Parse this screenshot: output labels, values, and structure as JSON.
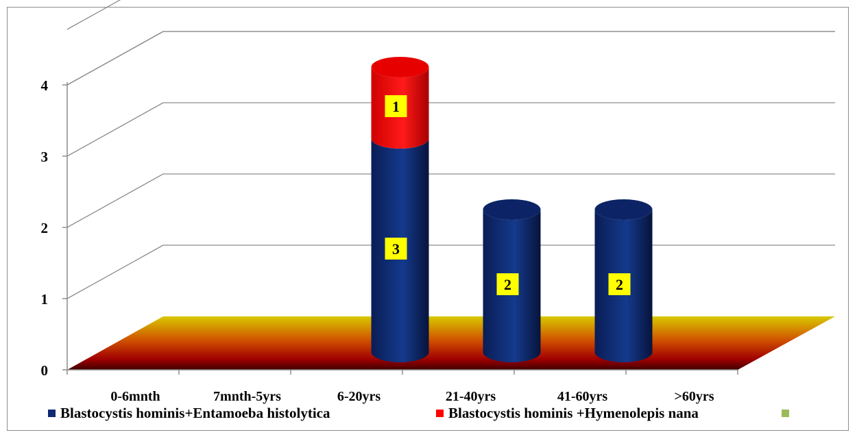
{
  "chart_data": {
    "type": "bar",
    "style": "3d-cylinder-stacked",
    "title": "",
    "xlabel": "",
    "ylabel": "",
    "ylim": [
      0,
      4
    ],
    "yticks": [
      "0",
      "1",
      "2",
      "3",
      "4"
    ],
    "grid": true,
    "legend_position": "bottom",
    "categories": [
      "0-6mnth",
      "7mnth-5yrs",
      "6-20yrs",
      "21-40yrs",
      "41-60yrs",
      ">60yrs"
    ],
    "series": [
      {
        "name": "Blastocystis hominis+Entamoeba histolytica",
        "color": "#0f2a73",
        "values": [
          0,
          0,
          3,
          2,
          2,
          0
        ],
        "labels": [
          "",
          "",
          "3",
          "2",
          "2",
          ""
        ]
      },
      {
        "name": "Blastocystis hominis +Hymenolepis nana",
        "color": "#ff0000",
        "values": [
          0,
          0,
          1,
          0,
          0,
          0
        ],
        "labels": [
          "",
          "",
          "1",
          "",
          "",
          ""
        ]
      },
      {
        "name": "",
        "color": "#9bbb59",
        "values": [
          0,
          0,
          0,
          0,
          0,
          0
        ],
        "labels": [
          "",
          "",
          "",
          "",
          "",
          ""
        ]
      }
    ],
    "data_label_background": "#ffff00",
    "floor_colors": [
      "#d4c400",
      "#c00000",
      "#400000"
    ]
  }
}
